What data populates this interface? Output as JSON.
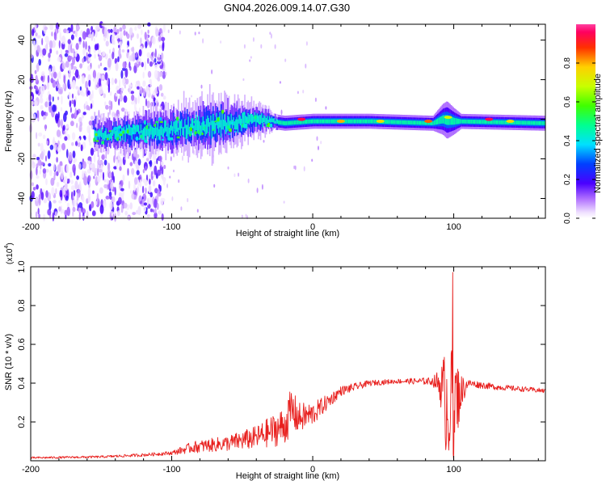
{
  "title": "GN04.2026.009.14.07.G30",
  "chart_data": [
    {
      "type": "heatmap",
      "xlabel": "Height of straight line (km)",
      "ylabel": "Frequency (Hz)",
      "xlim": [
        -200,
        165
      ],
      "ylim": [
        -50,
        48
      ],
      "xticks": [
        -200,
        -100,
        0,
        100
      ],
      "xticklabels": [
        "-200",
        "-100",
        "0",
        "100"
      ],
      "yticks": [
        -40,
        -20,
        0,
        20,
        40
      ],
      "yticklabels": [
        "-40",
        "-20",
        "0",
        "20",
        "40"
      ],
      "colorbar": {
        "label": "Normalized spectral amplitude",
        "range": [
          0,
          1
        ],
        "ticks": [
          0.0,
          0.2,
          0.4,
          0.6,
          0.8
        ],
        "ticklabels": [
          "0.0",
          "0.2",
          "0.4",
          "0.6",
          "0.8"
        ]
      },
      "features": {
        "noise_region_x": [
          -200,
          -105
        ],
        "band_center_freq": [
          [
            -150,
            -8
          ],
          [
            -100,
            -5
          ],
          [
            -60,
            -2
          ],
          [
            -40,
            0
          ],
          [
            -20,
            -2
          ],
          [
            0,
            -1
          ],
          [
            40,
            -1
          ],
          [
            85,
            -2
          ],
          [
            92,
            0
          ],
          [
            100,
            -1
          ],
          [
            165,
            -2
          ]
        ],
        "band_halfwidth_hz": [
          [
            -150,
            4
          ],
          [
            -100,
            6
          ],
          [
            -70,
            7
          ],
          [
            -40,
            4
          ],
          [
            -25,
            2
          ],
          [
            0,
            2
          ],
          [
            85,
            2
          ],
          [
            95,
            5
          ],
          [
            105,
            2
          ],
          [
            165,
            2
          ]
        ],
        "hot_spots": [
          [
            -8,
            0,
            0.95
          ],
          [
            20,
            -1,
            0.8
          ],
          [
            48,
            -1,
            0.75
          ],
          [
            82,
            -1,
            0.85
          ],
          [
            96,
            1,
            0.7
          ],
          [
            125,
            0,
            0.95
          ],
          [
            140,
            -1,
            0.75
          ]
        ]
      }
    },
    {
      "type": "line",
      "xlabel": "Height of straight line (km)",
      "ylabel": "SNR (10 * v/v)",
      "yscale_label": "(x10",
      "yscale_exp": "4",
      "yscale_close": ")",
      "xlim": [
        -200,
        165
      ],
      "ylim": [
        0,
        1.0
      ],
      "xticks": [
        -200,
        -100,
        0,
        100
      ],
      "xticklabels": [
        "-200",
        "-100",
        "0",
        "100"
      ],
      "yticks": [
        0.2,
        0.4,
        0.6,
        0.8,
        1.0
      ],
      "yticklabels": [
        "0.2",
        "0.4",
        "0.6",
        "0.8",
        "1.0"
      ],
      "series": [
        {
          "name": "SNR",
          "color": "#e8201e",
          "envelope_x": [
            -200,
            -150,
            -120,
            -100,
            -85,
            -60,
            -40,
            -20,
            -15,
            -10,
            0,
            10,
            20,
            40,
            60,
            85,
            90,
            95,
            100,
            105,
            110,
            130,
            165
          ],
          "envelope_mean": [
            0.015,
            0.02,
            0.03,
            0.04,
            0.07,
            0.09,
            0.12,
            0.18,
            0.26,
            0.22,
            0.24,
            0.3,
            0.36,
            0.4,
            0.41,
            0.41,
            0.4,
            0.3,
            0.3,
            0.35,
            0.4,
            0.38,
            0.36
          ],
          "envelope_noise": [
            0.005,
            0.006,
            0.008,
            0.01,
            0.03,
            0.04,
            0.06,
            0.1,
            0.12,
            0.08,
            0.06,
            0.04,
            0.025,
            0.015,
            0.012,
            0.02,
            0.08,
            0.3,
            0.3,
            0.1,
            0.02,
            0.015,
            0.012
          ]
        }
      ]
    }
  ]
}
